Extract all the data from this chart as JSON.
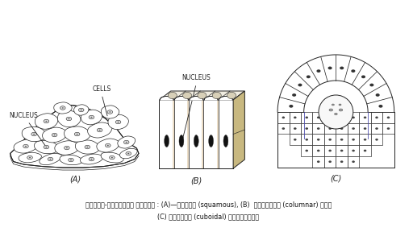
{
  "title_line1": "चित्र-सामान्य उपकला : (A)—शल्की (squamous), (B)  स्तम्भी (columnar) तथा",
  "title_line2": "(C) घनाकार (cuboidal) उपकलाएँ।",
  "bg_color": "#ffffff",
  "label_A": "(A)",
  "label_B": "(B)",
  "label_C": "(C)",
  "cells_label": "CELLS",
  "nucleus_label_A": "NUCLEUS",
  "nucleus_label_B": "NUCLEUS",
  "draw_color": "#222222",
  "brown_color": "#8B6914"
}
